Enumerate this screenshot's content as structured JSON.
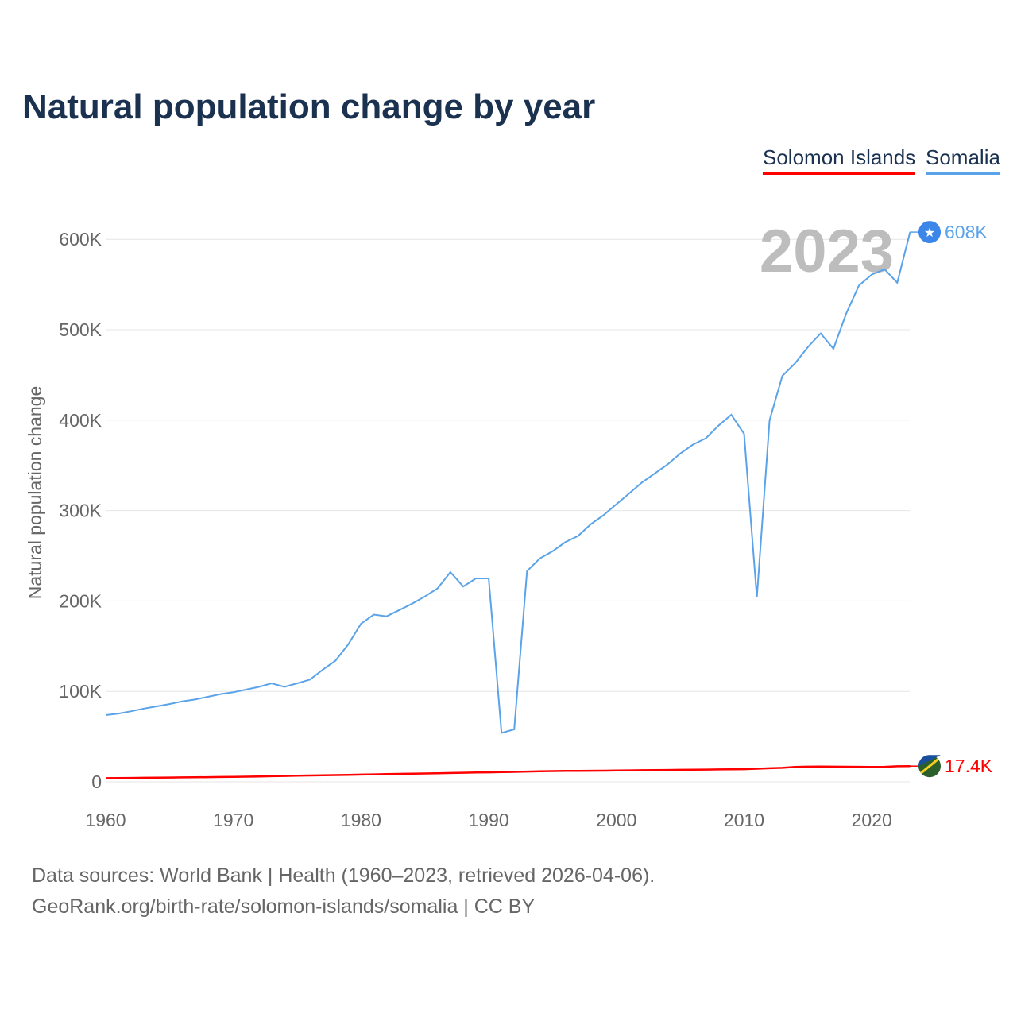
{
  "title": "Natural population change by year",
  "legend": [
    "Solomon Islands",
    "Somalia"
  ],
  "footer": {
    "line1": "Data sources: World Bank | Health (1960–2023, retrieved 2026-04-06).",
    "line2": "GeoRank.org/birth-rate/solomon-islands/somalia | CC BY"
  },
  "chart_data": {
    "type": "line",
    "title": "Natural population change by year",
    "ylabel": "Natural population change",
    "xlabel": "",
    "year_label": "2023",
    "xlim": [
      1960,
      2023
    ],
    "ylim": [
      0,
      650000
    ],
    "x_ticks": [
      "1960",
      "1970",
      "1980",
      "1990",
      "2000",
      "2010",
      "2020"
    ],
    "y_ticks": [
      "0",
      "100K",
      "200K",
      "300K",
      "400K",
      "500K",
      "600K"
    ],
    "x_start": 1960,
    "grid": true,
    "legend_position": "top-right",
    "series": [
      {
        "name": "Solomon Islands",
        "color": "#ff0000",
        "end_label": "17.4K",
        "values": [
          4000,
          4150,
          4300,
          4450,
          4600,
          4750,
          4900,
          5050,
          5200,
          5350,
          5500,
          5750,
          6000,
          6250,
          6500,
          6750,
          7000,
          7250,
          7500,
          7750,
          8000,
          8250,
          8500,
          8750,
          9000,
          9250,
          9500,
          9750,
          10000,
          10250,
          10500,
          10750,
          11000,
          11300,
          11600,
          11900,
          12000,
          12100,
          12200,
          12300,
          12500,
          12650,
          12800,
          12950,
          13100,
          13250,
          13400,
          13550,
          13700,
          13850,
          14000,
          14500,
          15000,
          15500,
          16500,
          16800,
          17000,
          16800,
          16700,
          16600,
          16500,
          16600,
          17200,
          17400
        ]
      },
      {
        "name": "Somalia",
        "color": "#5aa3e8",
        "end_label": "608K",
        "values": [
          73800,
          75500,
          78000,
          81000,
          83500,
          86000,
          89000,
          91000,
          94000,
          97000,
          99000,
          102000,
          105000,
          109000,
          105000,
          109000,
          113000,
          124000,
          134000,
          152000,
          175000,
          185000,
          183000,
          190000,
          197000,
          205000,
          214000,
          232000,
          216000,
          225000,
          225000,
          54000,
          58000,
          233000,
          247000,
          255000,
          265000,
          272000,
          285000,
          295000,
          307000,
          319000,
          331000,
          341000,
          351000,
          363000,
          373000,
          380000,
          394000,
          406000,
          385000,
          204000,
          400000,
          449000,
          463000,
          481000,
          496000,
          479000,
          518000,
          549000,
          561000,
          567000,
          552000,
          608000
        ]
      }
    ]
  }
}
